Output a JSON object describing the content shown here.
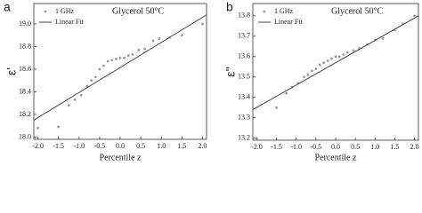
{
  "chart_data": [
    {
      "type": "scatter",
      "panel_label": "a",
      "annotation": "Glycerol 50°C",
      "x_label": "Percentile z",
      "y_label": "ε'",
      "xlim": [
        -2.1,
        2.1
      ],
      "ylim": [
        17.98,
        19.18
      ],
      "xticks": [
        {
          "value": -2,
          "label": "-2.0"
        },
        -1.5,
        {
          "value": -1,
          "label": "-1.0"
        },
        -0.5,
        {
          "value": 0,
          "label": "0.0"
        },
        0.5,
        {
          "value": 1,
          "label": "1.0"
        },
        1.5,
        {
          "value": 2,
          "label": "2.0"
        }
      ],
      "yticks": [
        {
          "value": 18,
          "label": "18.0"
        },
        18.2,
        18.4,
        18.6,
        18.8,
        {
          "value": 19,
          "label": "19.0"
        }
      ],
      "legend": "upper left",
      "series": [
        {
          "name": "1 GHz",
          "kind": "points",
          "color": "#999999",
          "x": [
            -2.0,
            -1.5,
            -1.25,
            -1.1,
            -0.95,
            -0.8,
            -0.7,
            -0.6,
            -0.5,
            -0.4,
            -0.3,
            -0.2,
            -0.1,
            0.0,
            0.1,
            0.2,
            0.3,
            0.45,
            0.6,
            0.8,
            0.95,
            1.2,
            1.5,
            2.0
          ],
          "values": [
            18.08,
            18.09,
            18.28,
            18.33,
            18.37,
            18.45,
            18.5,
            18.53,
            18.6,
            18.63,
            18.67,
            18.68,
            18.69,
            18.7,
            18.7,
            18.72,
            18.73,
            18.77,
            18.78,
            18.85,
            18.87,
            18.88,
            18.9,
            19.0
          ]
        },
        {
          "name": "Linear Fit",
          "kind": "line",
          "color": "#444444",
          "x": [
            -2.1,
            2.1
          ],
          "values": [
            18.15,
            19.08
          ]
        }
      ]
    },
    {
      "type": "scatter",
      "panel_label": "b",
      "annotation": "Glycerol 50°C",
      "x_label": "Percentile z",
      "y_label": "ε''",
      "xlim": [
        -2.1,
        2.1
      ],
      "ylim": [
        13.19,
        13.86
      ],
      "xticks": [
        {
          "value": -2,
          "label": "-2.0"
        },
        -1.5,
        {
          "value": -1,
          "label": "-1.0"
        },
        -0.5,
        {
          "value": 0,
          "label": "0.0"
        },
        0.5,
        {
          "value": 1,
          "label": "1.0"
        },
        1.5,
        {
          "value": 2,
          "label": "2.0"
        }
      ],
      "yticks": [
        13.2,
        13.3,
        13.4,
        13.5,
        13.6,
        13.7,
        13.8
      ],
      "legend": "upper left",
      "series": [
        {
          "name": "1 GHz",
          "kind": "points",
          "color": "#999999",
          "x": [
            -2.0,
            -1.5,
            -1.25,
            -1.1,
            -0.95,
            -0.8,
            -0.7,
            -0.6,
            -0.5,
            -0.4,
            -0.3,
            -0.2,
            -0.1,
            0.0,
            0.1,
            0.2,
            0.3,
            0.45,
            0.6,
            0.8,
            1.0,
            1.2,
            1.5,
            1.7,
            2.0
          ],
          "values": [
            13.2,
            13.35,
            13.42,
            13.45,
            13.47,
            13.5,
            13.51,
            13.53,
            13.54,
            13.56,
            13.57,
            13.58,
            13.59,
            13.6,
            13.6,
            13.61,
            13.62,
            13.63,
            13.64,
            13.66,
            13.68,
            13.69,
            13.73,
            13.76,
            13.8
          ]
        },
        {
          "name": "Linear Fit",
          "kind": "line",
          "color": "#444444",
          "x": [
            -2.1,
            2.1
          ],
          "values": [
            13.34,
            13.8
          ]
        }
      ]
    }
  ]
}
